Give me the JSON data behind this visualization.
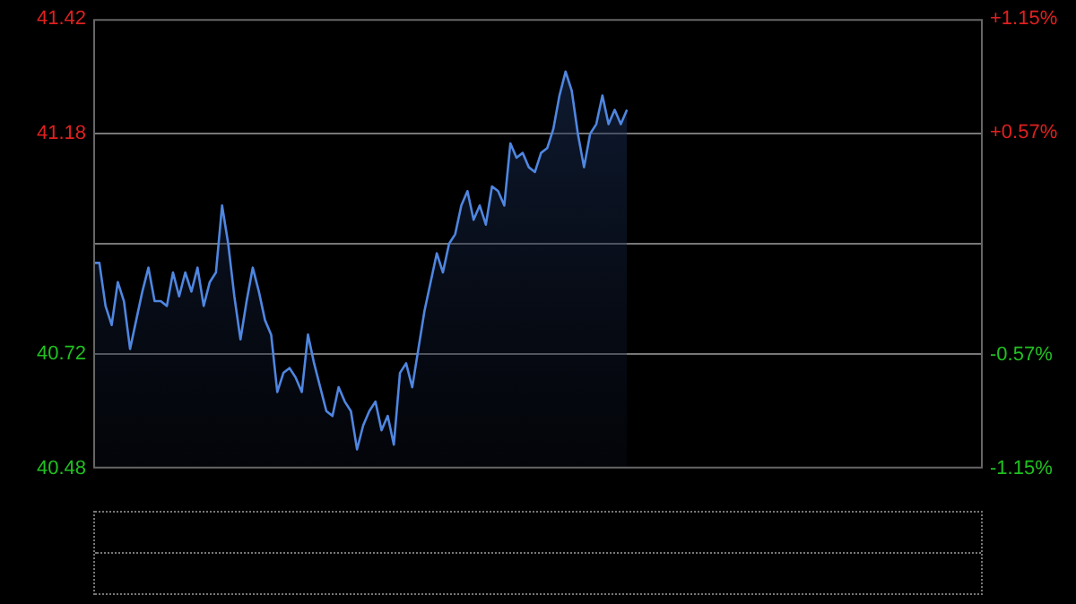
{
  "chart_data": {
    "type": "area",
    "categories": [
      null,
      null,
      null,
      null,
      null,
      null,
      null,
      null,
      null,
      null,
      null,
      null,
      null,
      null,
      null,
      null,
      null,
      null,
      null,
      null,
      null,
      null,
      null,
      null,
      null,
      null,
      null,
      null,
      null,
      null,
      null,
      null,
      null,
      null,
      null,
      null,
      null,
      null,
      null,
      null,
      null,
      null,
      null,
      null,
      null,
      null,
      null,
      null,
      null,
      null,
      null,
      null,
      null,
      null,
      null,
      null,
      null,
      null,
      null,
      null,
      null,
      null,
      null,
      null,
      null,
      null,
      null,
      null,
      null,
      null,
      null,
      null,
      null,
      null,
      null,
      null,
      null,
      null,
      null,
      null,
      null,
      null,
      null,
      null,
      null,
      null,
      null,
      null,
      null,
      null,
      null,
      null,
      null,
      null,
      null,
      null,
      null,
      null,
      null,
      null,
      null,
      null,
      null,
      null,
      null,
      null,
      null,
      null,
      null,
      null,
      null,
      null,
      null,
      null,
      null,
      null,
      null,
      null,
      null,
      null,
      null,
      null,
      null,
      null,
      null,
      null,
      null,
      null,
      null,
      null,
      null,
      null,
      null,
      null,
      null,
      null,
      null,
      null,
      null,
      null,
      null,
      null,
      null,
      null,
      null,
      null
    ],
    "series": [
      {
        "color": "#4f86e0",
        "values": [
          40.91,
          40.91,
          40.82,
          40.78,
          40.87,
          40.83,
          40.73,
          40.79,
          40.85,
          40.9,
          40.83,
          40.83,
          40.82,
          40.89,
          40.84,
          40.89,
          40.85,
          40.9,
          40.82,
          40.87,
          40.89,
          41.03,
          40.95,
          40.84,
          40.75,
          40.83,
          40.9,
          40.85,
          40.79,
          40.76,
          40.64,
          40.68,
          40.69,
          40.67,
          40.64,
          40.76,
          40.7,
          40.65,
          40.6,
          40.59,
          40.65,
          40.62,
          40.6,
          40.52,
          40.57,
          40.6,
          40.62,
          40.56,
          40.59,
          40.53,
          40.68,
          40.7,
          40.65,
          40.73,
          40.81,
          40.87,
          40.93,
          40.89,
          40.95,
          40.97,
          41.03,
          41.06,
          41.0,
          41.03,
          40.99,
          41.07,
          41.06,
          41.03,
          41.16,
          41.13,
          41.14,
          41.11,
          41.1,
          41.14,
          41.15,
          41.19,
          41.26,
          41.31,
          41.27,
          41.18,
          41.11,
          41.18,
          41.2,
          41.26,
          41.2,
          41.23,
          41.2,
          41.23,
          null,
          null,
          null,
          null,
          null,
          null,
          null,
          null,
          null,
          null,
          null,
          null,
          null,
          null,
          null,
          null,
          null,
          null,
          null,
          null,
          null,
          null,
          null,
          null,
          null,
          null,
          null,
          null,
          null,
          null,
          null,
          null,
          null,
          null,
          null,
          null,
          null,
          null,
          null,
          null,
          null,
          null,
          null,
          null,
          null,
          null,
          null,
          null,
          null,
          null,
          null,
          null,
          null,
          null,
          null,
          null,
          null,
          null
        ]
      }
    ],
    "ylim": [
      40.48,
      41.42
    ],
    "yticks": [
      40.48,
      40.72,
      {
        "value": 40.95,
        "label": null
      },
      41.18,
      41.42
    ],
    "y2lim": [
      -1.15,
      1.15
    ],
    "y2ticks": [
      {
        "value": -1.15,
        "label": "-1.15%"
      },
      {
        "value": -0.57,
        "label": "-0.57%"
      },
      {
        "value": 0.57,
        "label": "+0.57%"
      },
      {
        "value": 1.15,
        "label": "+1.15%"
      }
    ],
    "grid": "y",
    "tick_labels": "y"
  }
}
